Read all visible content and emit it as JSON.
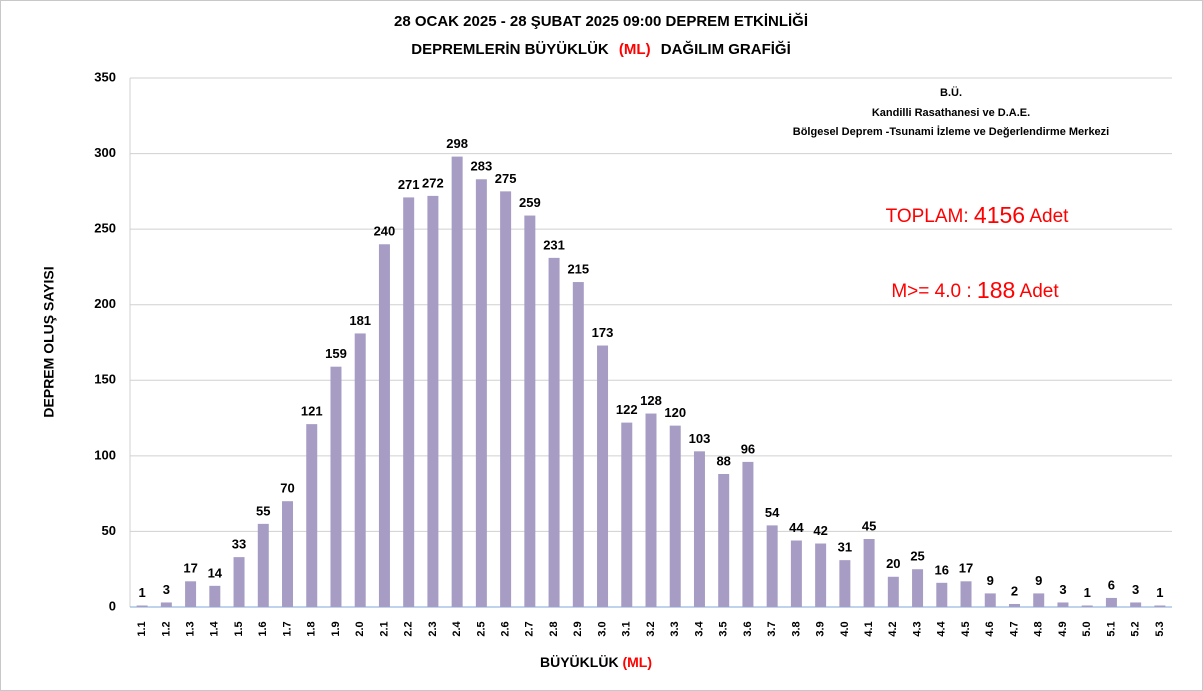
{
  "chart_data": {
    "type": "bar",
    "title": "28 OCAK 2025 - 28 ŞUBAT 2025 09:00  DEPREM ETKİNLİĞİ",
    "subtitle": [
      "DEPREMLERİN BÜYÜKLÜK",
      "(ML)",
      "DAĞILIM GRAFİĞİ"
    ],
    "xlabel": [
      "BÜYÜKLÜK",
      "(ML)"
    ],
    "ylabel": "DEPREM OLUŞ SAYISI",
    "annotations": {
      "credits": [
        "B.Ü.",
        "Kandilli Rasathanesi ve D.A.E.",
        "Bölgesel Deprem -Tsunami İzleme ve Değerlendirme Merkezi"
      ],
      "total": {
        "label": "TOPLAM:",
        "value": 4156,
        "unit": "Adet"
      },
      "strong": {
        "label": "M>= 4.0 :",
        "value": 188,
        "unit": "Adet"
      }
    },
    "categories": [
      "1.1",
      "1.2",
      "1.3",
      "1.4",
      "1.5",
      "1.6",
      "1.7",
      "1.8",
      "1.9",
      "2.0",
      "2.1",
      "2.2",
      "2.3",
      "2.4",
      "2.5",
      "2.6",
      "2.7",
      "2.8",
      "2.9",
      "3.0",
      "3.1",
      "3.2",
      "3.3",
      "3.4",
      "3.5",
      "3.6",
      "3.7",
      "3.8",
      "3.9",
      "4.0",
      "4.1",
      "4.2",
      "4.3",
      "4.4",
      "4.5",
      "4.6",
      "4.7",
      "4.8",
      "4.9",
      "5.0",
      "5.1",
      "5.2",
      "5.3"
    ],
    "values": [
      1,
      3,
      17,
      14,
      33,
      55,
      70,
      121,
      159,
      181,
      240,
      271,
      272,
      298,
      283,
      275,
      259,
      231,
      215,
      173,
      122,
      128,
      120,
      103,
      88,
      96,
      54,
      44,
      42,
      31,
      45,
      20,
      25,
      16,
      17,
      9,
      2,
      9,
      3,
      1,
      6,
      3,
      1
    ],
    "color": "#a79dc4",
    "ylim": [
      0,
      350
    ],
    "yticks": [
      0,
      50,
      100,
      150,
      200,
      250,
      300,
      350
    ],
    "grid": true
  }
}
